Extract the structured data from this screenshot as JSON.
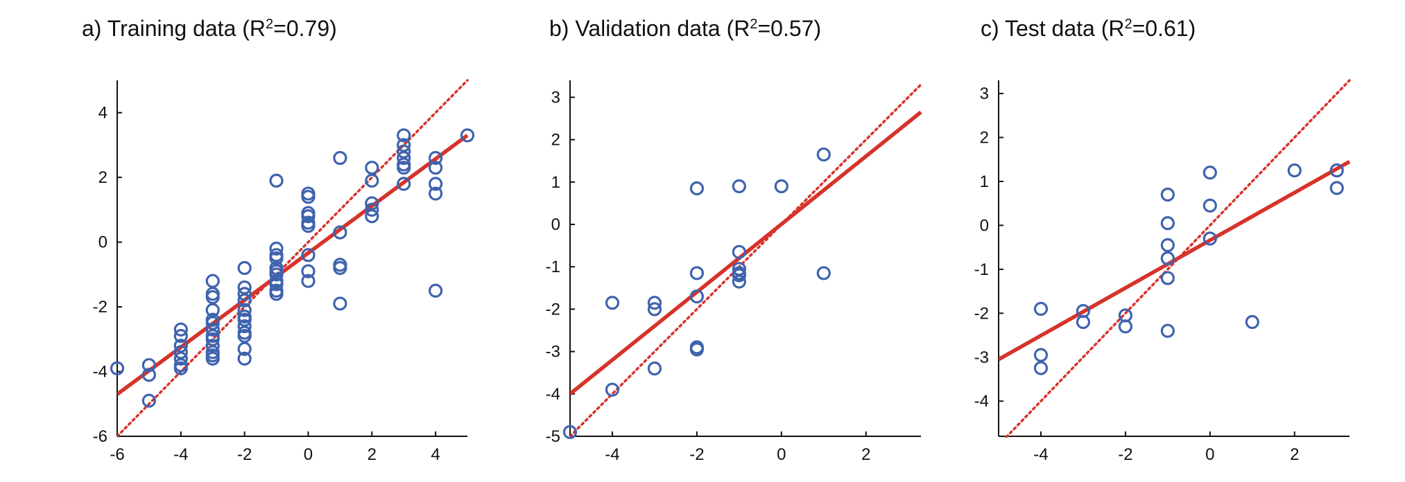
{
  "colors": {
    "points": "#3f63ad",
    "fit_line": "#d6332b",
    "axis": "#111111"
  },
  "chart_data": [
    {
      "type": "scatter",
      "title": "a) Training data (R",
      "title_sup": "2",
      "title_suffix": "=0.79)",
      "xlabel": "",
      "ylabel": "",
      "xlim": [
        -6,
        5
      ],
      "ylim": [
        -6,
        5
      ],
      "xticks": [
        -6,
        -4,
        -2,
        0,
        2,
        4
      ],
      "yticks": [
        -6,
        -4,
        -2,
        0,
        2,
        4
      ],
      "grid": false,
      "fit_line": {
        "x": [
          -6,
          5
        ],
        "y": [
          -4.7,
          3.3
        ]
      },
      "identity_line": {
        "x": [
          -6,
          5
        ],
        "y": [
          -6,
          5
        ]
      },
      "points": [
        [
          -6,
          -3.9
        ],
        [
          -5,
          -3.8
        ],
        [
          -5,
          -4.1
        ],
        [
          -5,
          -4.9
        ],
        [
          -4,
          -2.7
        ],
        [
          -4,
          -2.9
        ],
        [
          -4,
          -3.2
        ],
        [
          -4,
          -3.4
        ],
        [
          -4,
          -3.6
        ],
        [
          -4,
          -3.8
        ],
        [
          -4,
          -3.9
        ],
        [
          -3,
          -1.2
        ],
        [
          -3,
          -1.6
        ],
        [
          -3,
          -1.7
        ],
        [
          -3,
          -2.1
        ],
        [
          -3,
          -2.4
        ],
        [
          -3,
          -2.5
        ],
        [
          -3,
          -2.7
        ],
        [
          -3,
          -2.9
        ],
        [
          -3,
          -3.0
        ],
        [
          -3,
          -3.2
        ],
        [
          -3,
          -3.4
        ],
        [
          -3,
          -3.5
        ],
        [
          -3,
          -3.6
        ],
        [
          -2,
          -0.8
        ],
        [
          -2,
          -1.4
        ],
        [
          -2,
          -1.6
        ],
        [
          -2,
          -1.8
        ],
        [
          -2,
          -2.1
        ],
        [
          -2,
          -2.3
        ],
        [
          -2,
          -2.4
        ],
        [
          -2,
          -2.6
        ],
        [
          -2,
          -2.8
        ],
        [
          -2,
          -2.9
        ],
        [
          -2,
          -3.3
        ],
        [
          -2,
          -3.6
        ],
        [
          -1,
          1.9
        ],
        [
          -1,
          -0.2
        ],
        [
          -1,
          -0.4
        ],
        [
          -1,
          -0.5
        ],
        [
          -1,
          -0.8
        ],
        [
          -1,
          -0.9
        ],
        [
          -1,
          -1.0
        ],
        [
          -1,
          -1.2
        ],
        [
          -1,
          -1.3
        ],
        [
          -1,
          -1.5
        ],
        [
          -1,
          -1.6
        ],
        [
          0,
          1.5
        ],
        [
          0,
          1.4
        ],
        [
          0,
          0.9
        ],
        [
          0,
          0.8
        ],
        [
          0,
          0.6
        ],
        [
          0,
          0.5
        ],
        [
          0,
          -0.4
        ],
        [
          0,
          -0.9
        ],
        [
          0,
          -1.2
        ],
        [
          1,
          2.6
        ],
        [
          1,
          0.3
        ],
        [
          1,
          -0.7
        ],
        [
          1,
          -0.8
        ],
        [
          1,
          -1.9
        ],
        [
          2,
          2.3
        ],
        [
          2,
          1.9
        ],
        [
          2,
          1.2
        ],
        [
          2,
          1.0
        ],
        [
          2,
          0.8
        ],
        [
          3,
          3.3
        ],
        [
          3,
          3.0
        ],
        [
          3,
          2.8
        ],
        [
          3,
          2.6
        ],
        [
          3,
          2.4
        ],
        [
          3,
          2.3
        ],
        [
          3,
          1.8
        ],
        [
          4,
          2.6
        ],
        [
          4,
          2.3
        ],
        [
          4,
          1.8
        ],
        [
          4,
          1.5
        ],
        [
          4,
          -1.5
        ],
        [
          5,
          3.3
        ]
      ]
    },
    {
      "type": "scatter",
      "title": "b) Validation data (R",
      "title_sup": "2",
      "title_suffix": "=0.57)",
      "xlabel": "",
      "ylabel": "",
      "xlim": [
        -5,
        3.3
      ],
      "ylim": [
        -5,
        3.4
      ],
      "xticks": [
        -4,
        -2,
        0,
        2
      ],
      "yticks": [
        -5,
        -4,
        -3,
        -2,
        -1,
        0,
        1,
        2,
        3
      ],
      "grid": false,
      "fit_line": {
        "x": [
          -5,
          3.3
        ],
        "y": [
          -4.0,
          2.65
        ]
      },
      "identity_line": {
        "x": [
          -5,
          3.3
        ],
        "y": [
          -5,
          3.3
        ]
      },
      "points": [
        [
          -5,
          -4.9
        ],
        [
          -4,
          -1.85
        ],
        [
          -4,
          -3.9
        ],
        [
          -3,
          -1.85
        ],
        [
          -3,
          -2.0
        ],
        [
          -3,
          -3.4
        ],
        [
          -2,
          0.85
        ],
        [
          -2,
          -1.15
        ],
        [
          -2,
          -1.7
        ],
        [
          -2,
          -2.9
        ],
        [
          -2,
          -2.95
        ],
        [
          -1,
          0.9
        ],
        [
          -1,
          -0.65
        ],
        [
          -1,
          -1.05
        ],
        [
          -1,
          -1.15
        ],
        [
          -1,
          -1.2
        ],
        [
          -1,
          -1.35
        ],
        [
          0,
          0.9
        ],
        [
          1,
          1.65
        ],
        [
          1,
          -1.15
        ]
      ]
    },
    {
      "type": "scatter",
      "title": "c) Test data (R",
      "title_sup": "2",
      "title_suffix": "=0.61)",
      "xlabel": "",
      "ylabel": "",
      "xlim": [
        -5,
        3.3
      ],
      "ylim": [
        -4.8,
        3.3
      ],
      "xticks": [
        -4,
        -2,
        0,
        2
      ],
      "yticks": [
        -4,
        -3,
        -2,
        -1,
        0,
        1,
        2,
        3
      ],
      "grid": false,
      "fit_line": {
        "x": [
          -5,
          3.3
        ],
        "y": [
          -3.05,
          1.45
        ]
      },
      "identity_line": {
        "x": [
          -5,
          3.3
        ],
        "y": [
          -5,
          3.3
        ]
      },
      "points": [
        [
          -4,
          -1.9
        ],
        [
          -4,
          -2.95
        ],
        [
          -4,
          -3.25
        ],
        [
          -3,
          -1.95
        ],
        [
          -3,
          -2.2
        ],
        [
          -2,
          -2.05
        ],
        [
          -2,
          -2.3
        ],
        [
          -1,
          0.7
        ],
        [
          -1,
          0.05
        ],
        [
          -1,
          -0.45
        ],
        [
          -1,
          -0.75
        ],
        [
          -1,
          -1.2
        ],
        [
          -1,
          -2.4
        ],
        [
          0,
          1.2
        ],
        [
          0,
          0.45
        ],
        [
          0,
          -0.3
        ],
        [
          1,
          -2.2
        ],
        [
          2,
          1.25
        ],
        [
          3,
          1.25
        ],
        [
          3,
          0.85
        ]
      ]
    }
  ]
}
